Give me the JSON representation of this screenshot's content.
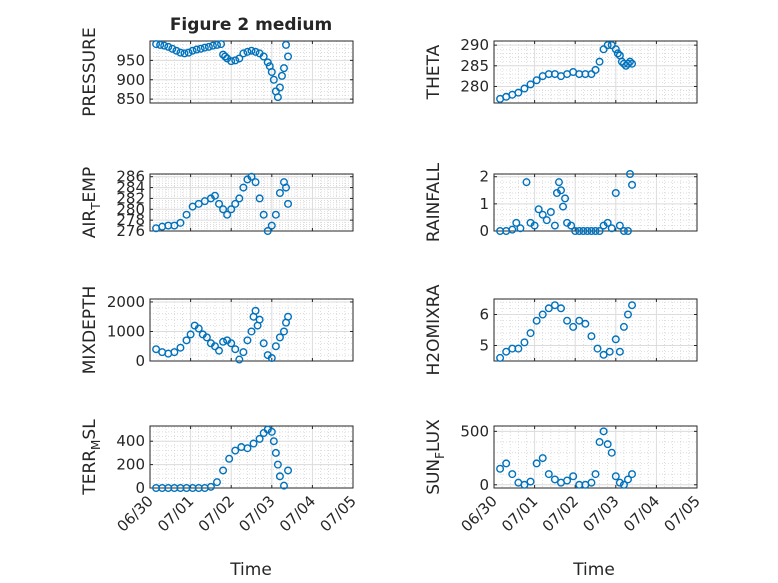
{
  "figure": {
    "title": "Figure 2 medium",
    "time_label": "Time",
    "time_ticks": [
      "06/30",
      "07/01",
      "07/02",
      "07/03",
      "07/04",
      "07/05"
    ],
    "marker_color": "#0072BD"
  },
  "chart_data": [
    {
      "type": "scatter",
      "ylabel": "PRESSURE",
      "ylim": [
        840,
        1000
      ],
      "yticks": [
        850,
        900,
        950
      ],
      "xlim": [
        0,
        5
      ],
      "grid": true,
      "minor_grid": true,
      "x": [
        0.15,
        0.25,
        0.35,
        0.45,
        0.55,
        0.65,
        0.75,
        0.85,
        0.95,
        1.05,
        1.15,
        1.25,
        1.35,
        1.45,
        1.55,
        1.65,
        1.75,
        1.8,
        1.85,
        1.9,
        2.0,
        2.1,
        2.2,
        2.3,
        2.4,
        2.5,
        2.6,
        2.7,
        2.8,
        2.9,
        2.95,
        3.0,
        3.05,
        3.1,
        3.15,
        3.2,
        3.25,
        3.3,
        3.35,
        3.4
      ],
      "y": [
        992,
        990,
        988,
        985,
        980,
        975,
        970,
        968,
        970,
        975,
        978,
        980,
        983,
        985,
        988,
        990,
        992,
        965,
        960,
        955,
        948,
        950,
        955,
        968,
        972,
        975,
        972,
        968,
        960,
        945,
        935,
        920,
        900,
        870,
        855,
        880,
        910,
        930,
        990,
        960
      ]
    },
    {
      "type": "scatter",
      "ylabel": "THETA",
      "ylim": [
        276,
        291
      ],
      "yticks": [
        280,
        285,
        290
      ],
      "xlim": [
        0,
        5
      ],
      "grid": true,
      "minor_grid": true,
      "x": [
        0.15,
        0.3,
        0.45,
        0.6,
        0.75,
        0.9,
        1.05,
        1.2,
        1.35,
        1.5,
        1.65,
        1.8,
        1.95,
        2.1,
        2.25,
        2.4,
        2.5,
        2.6,
        2.7,
        2.8,
        2.9,
        3.0,
        3.05,
        3.1,
        3.15,
        3.2,
        3.25,
        3.3,
        3.35,
        3.4
      ],
      "y": [
        277,
        277.5,
        278,
        278.5,
        279.5,
        280.5,
        281.5,
        282.5,
        283,
        283,
        282.5,
        283,
        283.5,
        283,
        283,
        283,
        284,
        286,
        289,
        290,
        290,
        289,
        288,
        287.5,
        286,
        285.5,
        285,
        285.5,
        286,
        285.5
      ]
    },
    {
      "type": "scatter",
      "ylabel": "AIR_TEMP",
      "ylabel_sub": "T",
      "ylim": [
        276,
        286.5
      ],
      "yticks": [
        276,
        278,
        280,
        282,
        284,
        286
      ],
      "xlim": [
        0,
        5
      ],
      "grid": true,
      "minor_grid": true,
      "x": [
        0.15,
        0.3,
        0.45,
        0.6,
        0.75,
        0.9,
        1.05,
        1.2,
        1.35,
        1.5,
        1.6,
        1.7,
        1.8,
        1.9,
        2.0,
        2.1,
        2.2,
        2.3,
        2.4,
        2.5,
        2.6,
        2.7,
        2.8,
        2.9,
        3.0,
        3.1,
        3.2,
        3.3,
        3.35,
        3.4
      ],
      "y": [
        276.5,
        276.8,
        277,
        277,
        277.5,
        279,
        280.5,
        281,
        281.5,
        282,
        282.5,
        281,
        280,
        279,
        280,
        281,
        282,
        284,
        285.5,
        286,
        285,
        282,
        279,
        276,
        277,
        279,
        283,
        285,
        284,
        281
      ]
    },
    {
      "type": "scatter",
      "ylabel": "RAINFALL",
      "ylim": [
        0,
        2.1
      ],
      "yticks": [
        0,
        1,
        2
      ],
      "xlim": [
        0,
        5
      ],
      "grid": true,
      "minor_grid": true,
      "x": [
        0.15,
        0.3,
        0.45,
        0.55,
        0.65,
        0.8,
        0.9,
        1.0,
        1.1,
        1.2,
        1.3,
        1.4,
        1.5,
        1.55,
        1.6,
        1.65,
        1.7,
        1.75,
        1.8,
        1.9,
        2.0,
        2.1,
        2.2,
        2.3,
        2.4,
        2.5,
        2.6,
        2.7,
        2.8,
        2.9,
        3.0,
        3.1,
        3.2,
        3.3,
        3.35,
        3.4
      ],
      "y": [
        0,
        0,
        0.05,
        0.3,
        0.1,
        1.8,
        0.3,
        0.2,
        0.8,
        0.6,
        0.4,
        0.7,
        0.2,
        1.4,
        1.8,
        1.5,
        0.9,
        1.2,
        0.3,
        0.2,
        0,
        0,
        0,
        0,
        0,
        0,
        0,
        0.2,
        0.3,
        0.1,
        1.4,
        0.2,
        0,
        0,
        2.1,
        1.7
      ]
    },
    {
      "type": "scatter",
      "ylabel": "MIXDEPTH",
      "ylim": [
        0,
        2100
      ],
      "yticks": [
        0,
        1000,
        2000
      ],
      "xlim": [
        0,
        5
      ],
      "grid": true,
      "minor_grid": true,
      "x": [
        0.15,
        0.3,
        0.45,
        0.6,
        0.75,
        0.9,
        1.0,
        1.1,
        1.2,
        1.3,
        1.4,
        1.5,
        1.6,
        1.7,
        1.8,
        1.9,
        2.0,
        2.1,
        2.2,
        2.3,
        2.4,
        2.5,
        2.55,
        2.6,
        2.65,
        2.7,
        2.8,
        2.9,
        3.0,
        3.1,
        3.2,
        3.3,
        3.35,
        3.4
      ],
      "y": [
        400,
        300,
        250,
        300,
        450,
        700,
        900,
        1200,
        1100,
        900,
        800,
        600,
        500,
        350,
        650,
        700,
        600,
        400,
        50,
        300,
        700,
        1000,
        1500,
        1700,
        1200,
        1400,
        600,
        200,
        100,
        500,
        800,
        1000,
        1300,
        1500
      ]
    },
    {
      "type": "scatter",
      "ylabel": "H2OMIXRA",
      "ylim": [
        4.5,
        6.5
      ],
      "yticks": [
        5,
        6
      ],
      "xlim": [
        0,
        5
      ],
      "grid": true,
      "minor_grid": true,
      "x": [
        0.15,
        0.3,
        0.45,
        0.6,
        0.75,
        0.9,
        1.05,
        1.2,
        1.35,
        1.5,
        1.65,
        1.8,
        1.95,
        2.1,
        2.25,
        2.4,
        2.55,
        2.7,
        2.85,
        3.0,
        3.1,
        3.2,
        3.3,
        3.4
      ],
      "y": [
        4.6,
        4.8,
        4.9,
        4.9,
        5.1,
        5.4,
        5.8,
        6.0,
        6.2,
        6.3,
        6.2,
        5.8,
        5.6,
        5.8,
        5.7,
        5.3,
        4.9,
        4.7,
        4.8,
        5.2,
        4.8,
        5.6,
        6.0,
        6.3
      ]
    },
    {
      "type": "scatter",
      "ylabel": "TERR_MSL",
      "ylabel_sub": "M",
      "ylim": [
        0,
        530
      ],
      "yticks": [
        0,
        200,
        400
      ],
      "xlim": [
        0,
        5
      ],
      "grid": true,
      "minor_grid": true,
      "x": [
        0.15,
        0.3,
        0.45,
        0.6,
        0.75,
        0.9,
        1.05,
        1.2,
        1.35,
        1.5,
        1.65,
        1.8,
        1.95,
        2.1,
        2.25,
        2.4,
        2.55,
        2.7,
        2.8,
        2.9,
        3.0,
        3.05,
        3.1,
        3.15,
        3.2,
        3.3,
        3.4
      ],
      "y": [
        0,
        0,
        0,
        0,
        0,
        0,
        0,
        0,
        0,
        10,
        50,
        150,
        250,
        320,
        350,
        340,
        380,
        420,
        470,
        500,
        480,
        400,
        300,
        200,
        100,
        20,
        150
      ]
    },
    {
      "type": "scatter",
      "ylabel": "SUN_FLUX",
      "ylabel_sub": "F",
      "ylim": [
        -30,
        550
      ],
      "yticks": [
        0,
        500
      ],
      "xlim": [
        0,
        5
      ],
      "grid": true,
      "minor_grid": true,
      "x": [
        0.15,
        0.3,
        0.45,
        0.6,
        0.75,
        0.9,
        1.05,
        1.2,
        1.35,
        1.5,
        1.65,
        1.8,
        1.95,
        2.1,
        2.25,
        2.4,
        2.5,
        2.6,
        2.7,
        2.8,
        2.9,
        3.0,
        3.1,
        3.2,
        3.3,
        3.4
      ],
      "y": [
        150,
        200,
        100,
        20,
        0,
        30,
        200,
        250,
        100,
        50,
        20,
        40,
        80,
        0,
        0,
        20,
        100,
        400,
        500,
        380,
        300,
        80,
        20,
        0,
        50,
        100
      ]
    }
  ]
}
